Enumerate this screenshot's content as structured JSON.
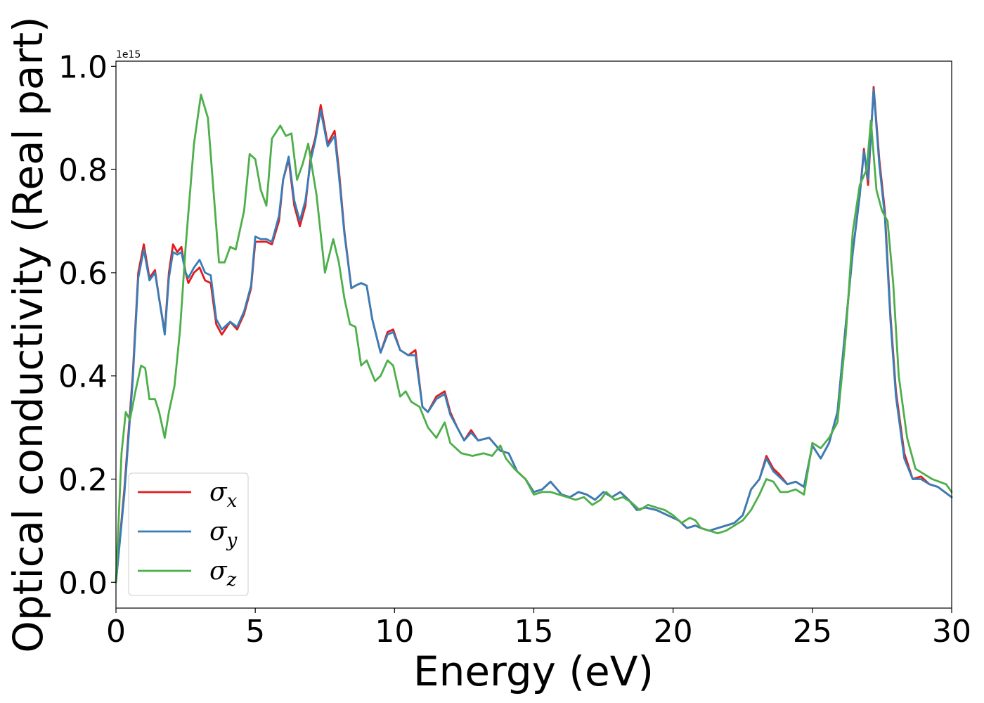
{
  "chart_data": {
    "type": "line",
    "xlabel": "Energy (eV)",
    "ylabel": "Optical conductivity (Real part)",
    "y_offset_label": "1e15",
    "xlim": [
      0,
      30
    ],
    "ylim": [
      -0.05,
      1.01
    ],
    "xticks": [
      0,
      5,
      10,
      15,
      20,
      25,
      30
    ],
    "xtick_labels": [
      "0",
      "5",
      "10",
      "15",
      "20",
      "25",
      "30"
    ],
    "yticks": [
      0.0,
      0.2,
      0.4,
      0.6,
      0.8,
      1.0
    ],
    "ytick_labels": [
      "0.0",
      "0.2",
      "0.4",
      "0.6",
      "0.8",
      "1.0"
    ],
    "grid": false,
    "legend_position": "lower-left",
    "series": [
      {
        "name": "σx",
        "name_base": "σ",
        "name_sub": "x",
        "color": "#e41a1c",
        "x": [
          0,
          0.3,
          0.6,
          0.8,
          1.0,
          1.2,
          1.4,
          1.55,
          1.75,
          1.9,
          2.05,
          2.2,
          2.35,
          2.5,
          2.6,
          2.8,
          3.0,
          3.2,
          3.4,
          3.6,
          3.8,
          4.1,
          4.35,
          4.6,
          4.85,
          5.0,
          5.2,
          5.4,
          5.6,
          5.85,
          6.0,
          6.2,
          6.4,
          6.6,
          6.8,
          7.0,
          7.15,
          7.35,
          7.6,
          7.85,
          8.0,
          8.2,
          8.45,
          8.6,
          8.8,
          9.0,
          9.2,
          9.5,
          9.75,
          9.95,
          10.2,
          10.5,
          10.75,
          11.0,
          11.2,
          11.5,
          11.8,
          12.0,
          12.25,
          12.5,
          12.75,
          13.0,
          13.4,
          13.8,
          14.1,
          14.4,
          14.7,
          15.0,
          15.3,
          15.6,
          16.0,
          16.3,
          16.6,
          16.9,
          17.2,
          17.5,
          17.8,
          18.1,
          18.4,
          18.7,
          19.0,
          19.4,
          19.8,
          20.2,
          20.5,
          20.8,
          21.0,
          21.3,
          21.6,
          21.9,
          22.2,
          22.5,
          22.8,
          23.1,
          23.35,
          23.6,
          23.8,
          24.1,
          24.4,
          24.7,
          25.0,
          25.3,
          25.6,
          25.9,
          26.2,
          26.45,
          26.7,
          26.85,
          27.0,
          27.2,
          27.4,
          27.6,
          27.8,
          28.0,
          28.3,
          28.6,
          28.9,
          29.2,
          29.5,
          29.75,
          30.0
        ],
        "y": [
          0.0,
          0.18,
          0.4,
          0.6,
          0.655,
          0.59,
          0.605,
          0.55,
          0.485,
          0.6,
          0.655,
          0.64,
          0.65,
          0.6,
          0.58,
          0.6,
          0.61,
          0.585,
          0.58,
          0.5,
          0.48,
          0.505,
          0.49,
          0.52,
          0.57,
          0.66,
          0.66,
          0.66,
          0.655,
          0.7,
          0.78,
          0.82,
          0.73,
          0.69,
          0.73,
          0.83,
          0.86,
          0.925,
          0.85,
          0.875,
          0.8,
          0.68,
          0.57,
          0.575,
          0.58,
          0.575,
          0.51,
          0.445,
          0.485,
          0.49,
          0.45,
          0.44,
          0.45,
          0.34,
          0.33,
          0.36,
          0.37,
          0.33,
          0.3,
          0.275,
          0.295,
          0.275,
          0.28,
          0.255,
          0.25,
          0.215,
          0.2,
          0.175,
          0.18,
          0.195,
          0.17,
          0.165,
          0.175,
          0.17,
          0.16,
          0.175,
          0.165,
          0.175,
          0.16,
          0.14,
          0.145,
          0.14,
          0.13,
          0.12,
          0.105,
          0.11,
          0.105,
          0.1,
          0.105,
          0.11,
          0.115,
          0.13,
          0.18,
          0.2,
          0.245,
          0.22,
          0.21,
          0.19,
          0.195,
          0.185,
          0.265,
          0.24,
          0.27,
          0.33,
          0.5,
          0.64,
          0.75,
          0.84,
          0.77,
          0.96,
          0.82,
          0.72,
          0.52,
          0.37,
          0.25,
          0.2,
          0.205,
          0.19,
          0.185,
          0.175,
          0.165
        ]
      },
      {
        "name": "σy",
        "name_base": "σ",
        "name_sub": "y",
        "color": "#377eb8",
        "x": [
          0,
          0.3,
          0.6,
          0.8,
          1.0,
          1.2,
          1.4,
          1.55,
          1.75,
          1.9,
          2.05,
          2.2,
          2.35,
          2.5,
          2.6,
          2.8,
          3.0,
          3.2,
          3.4,
          3.6,
          3.8,
          4.1,
          4.35,
          4.6,
          4.85,
          5.0,
          5.2,
          5.4,
          5.6,
          5.85,
          6.0,
          6.2,
          6.4,
          6.6,
          6.8,
          7.0,
          7.15,
          7.35,
          7.6,
          7.85,
          8.0,
          8.2,
          8.45,
          8.6,
          8.8,
          9.0,
          9.2,
          9.5,
          9.75,
          9.95,
          10.2,
          10.5,
          10.75,
          11.0,
          11.2,
          11.5,
          11.8,
          12.0,
          12.25,
          12.5,
          12.75,
          13.0,
          13.4,
          13.8,
          14.1,
          14.4,
          14.7,
          15.0,
          15.3,
          15.6,
          16.0,
          16.3,
          16.6,
          16.9,
          17.2,
          17.5,
          17.8,
          18.1,
          18.4,
          18.7,
          19.0,
          19.4,
          19.8,
          20.2,
          20.5,
          20.8,
          21.0,
          21.3,
          21.6,
          21.9,
          22.2,
          22.5,
          22.8,
          23.1,
          23.35,
          23.6,
          23.8,
          24.1,
          24.4,
          24.7,
          25.0,
          25.3,
          25.6,
          25.9,
          26.2,
          26.45,
          26.7,
          26.85,
          27.0,
          27.2,
          27.4,
          27.6,
          27.8,
          28.0,
          28.3,
          28.6,
          28.9,
          29.2,
          29.5,
          29.75,
          30.0
        ],
        "y": [
          0.0,
          0.17,
          0.39,
          0.59,
          0.645,
          0.585,
          0.6,
          0.55,
          0.48,
          0.59,
          0.64,
          0.635,
          0.64,
          0.6,
          0.59,
          0.61,
          0.625,
          0.6,
          0.595,
          0.51,
          0.49,
          0.505,
          0.495,
          0.525,
          0.575,
          0.67,
          0.665,
          0.665,
          0.66,
          0.71,
          0.78,
          0.825,
          0.74,
          0.7,
          0.74,
          0.82,
          0.855,
          0.915,
          0.845,
          0.865,
          0.79,
          0.675,
          0.57,
          0.575,
          0.58,
          0.575,
          0.51,
          0.445,
          0.48,
          0.485,
          0.45,
          0.44,
          0.44,
          0.34,
          0.33,
          0.355,
          0.365,
          0.325,
          0.3,
          0.275,
          0.29,
          0.275,
          0.28,
          0.255,
          0.25,
          0.215,
          0.2,
          0.175,
          0.18,
          0.195,
          0.17,
          0.165,
          0.175,
          0.17,
          0.16,
          0.175,
          0.165,
          0.175,
          0.16,
          0.14,
          0.145,
          0.14,
          0.13,
          0.12,
          0.105,
          0.11,
          0.105,
          0.1,
          0.105,
          0.11,
          0.115,
          0.13,
          0.18,
          0.2,
          0.24,
          0.215,
          0.205,
          0.19,
          0.195,
          0.185,
          0.265,
          0.24,
          0.27,
          0.33,
          0.5,
          0.64,
          0.75,
          0.835,
          0.78,
          0.955,
          0.81,
          0.71,
          0.51,
          0.36,
          0.24,
          0.2,
          0.2,
          0.19,
          0.185,
          0.175,
          0.165
        ]
      },
      {
        "name": "σz",
        "name_base": "σ",
        "name_sub": "z",
        "color": "#4daf4a",
        "x": [
          0,
          0.2,
          0.35,
          0.5,
          0.7,
          0.9,
          1.05,
          1.2,
          1.4,
          1.55,
          1.75,
          1.9,
          2.1,
          2.3,
          2.5,
          2.8,
          3.05,
          3.3,
          3.5,
          3.7,
          3.9,
          4.1,
          4.3,
          4.6,
          4.8,
          5.0,
          5.2,
          5.4,
          5.6,
          5.9,
          6.1,
          6.3,
          6.5,
          6.7,
          6.9,
          7.2,
          7.5,
          7.8,
          8.0,
          8.2,
          8.4,
          8.6,
          8.8,
          9.0,
          9.3,
          9.5,
          9.75,
          9.95,
          10.2,
          10.4,
          10.6,
          10.9,
          11.2,
          11.5,
          11.8,
          12.0,
          12.4,
          12.8,
          13.2,
          13.5,
          13.8,
          14.0,
          14.3,
          14.7,
          15.0,
          15.3,
          15.6,
          15.9,
          16.2,
          16.5,
          16.8,
          17.1,
          17.4,
          17.6,
          17.9,
          18.2,
          18.5,
          18.8,
          19.1,
          19.4,
          19.7,
          20.0,
          20.3,
          20.6,
          20.8,
          21.0,
          21.3,
          21.6,
          21.9,
          22.2,
          22.5,
          22.8,
          23.1,
          23.35,
          23.6,
          23.85,
          24.1,
          24.4,
          24.7,
          25.0,
          25.3,
          25.6,
          25.9,
          26.2,
          26.45,
          26.7,
          26.95,
          27.1,
          27.3,
          27.5,
          27.7,
          27.9,
          28.1,
          28.4,
          28.7,
          29.0,
          29.3,
          29.55,
          29.8,
          30.0
        ],
        "y": [
          0.0,
          0.25,
          0.33,
          0.315,
          0.37,
          0.42,
          0.415,
          0.355,
          0.355,
          0.33,
          0.28,
          0.33,
          0.38,
          0.49,
          0.65,
          0.85,
          0.945,
          0.9,
          0.76,
          0.62,
          0.62,
          0.65,
          0.645,
          0.72,
          0.83,
          0.82,
          0.76,
          0.73,
          0.86,
          0.885,
          0.865,
          0.87,
          0.78,
          0.81,
          0.85,
          0.75,
          0.6,
          0.665,
          0.62,
          0.55,
          0.5,
          0.495,
          0.42,
          0.43,
          0.39,
          0.4,
          0.43,
          0.42,
          0.36,
          0.37,
          0.35,
          0.34,
          0.3,
          0.28,
          0.31,
          0.27,
          0.25,
          0.245,
          0.25,
          0.245,
          0.265,
          0.24,
          0.22,
          0.2,
          0.17,
          0.175,
          0.175,
          0.17,
          0.165,
          0.16,
          0.165,
          0.15,
          0.16,
          0.175,
          0.16,
          0.165,
          0.155,
          0.14,
          0.15,
          0.145,
          0.14,
          0.13,
          0.115,
          0.125,
          0.12,
          0.105,
          0.1,
          0.095,
          0.1,
          0.11,
          0.12,
          0.14,
          0.17,
          0.2,
          0.195,
          0.175,
          0.175,
          0.18,
          0.17,
          0.27,
          0.26,
          0.28,
          0.31,
          0.48,
          0.68,
          0.77,
          0.8,
          0.895,
          0.76,
          0.72,
          0.7,
          0.58,
          0.4,
          0.28,
          0.22,
          0.21,
          0.2,
          0.195,
          0.19,
          0.175
        ]
      }
    ]
  }
}
